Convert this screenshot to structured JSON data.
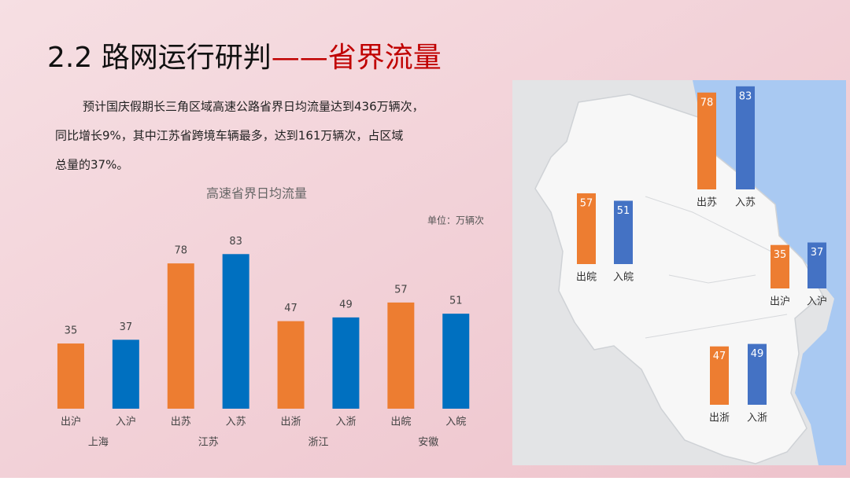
{
  "header": {
    "title": "2.2 路网运行研判",
    "title_accent": "——省界流量"
  },
  "paragraph": [
    "预计国庆假期长三角区域高速公路省界日均流量达到436万辆次，",
    "同比增长9%，其中江苏省跨境车辆最多，达到161万辆次，占区域",
    "总量的37%。"
  ],
  "chart_data": {
    "type": "bar",
    "title": "高速省界日均流量",
    "unit_label": "单位：万辆次",
    "categories": [
      "出沪",
      "入沪",
      "出苏",
      "入苏",
      "出浙",
      "入浙",
      "出皖",
      "入皖"
    ],
    "groups": [
      "上海",
      "江苏",
      "浙江",
      "安徽"
    ],
    "values": [
      35,
      37,
      78,
      83,
      47,
      49,
      57,
      51
    ],
    "colors": [
      "#ed7d31",
      "#0070c0",
      "#ed7d31",
      "#0070c0",
      "#ed7d31",
      "#0070c0",
      "#ed7d31",
      "#0070c0"
    ]
  },
  "map": {
    "bars": [
      {
        "label": "出苏",
        "value": 78,
        "color": "#ed7d31"
      },
      {
        "label": "入苏",
        "value": 83,
        "color": "#4472c4"
      },
      {
        "label": "出皖",
        "value": 57,
        "color": "#ed7d31"
      },
      {
        "label": "入皖",
        "value": 51,
        "color": "#4472c4"
      },
      {
        "label": "出沪",
        "value": 35,
        "color": "#ed7d31"
      },
      {
        "label": "入沪",
        "value": 37,
        "color": "#4472c4"
      },
      {
        "label": "出浙",
        "value": 47,
        "color": "#ed7d31"
      },
      {
        "label": "入浙",
        "value": 49,
        "color": "#4472c4"
      }
    ]
  }
}
